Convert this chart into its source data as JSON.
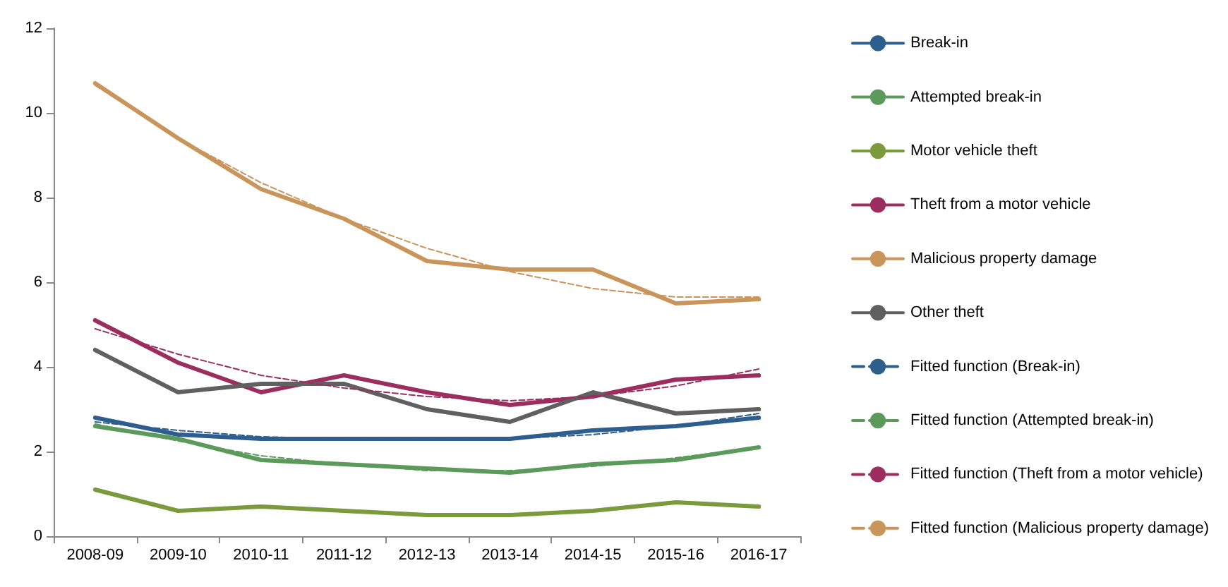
{
  "chart_data": {
    "type": "line",
    "categories": [
      "2008-09",
      "2009-10",
      "2010-11",
      "2011-12",
      "2012-13",
      "2013-14",
      "2014-15",
      "2015-16",
      "2016-17"
    ],
    "ylim": [
      0,
      12
    ],
    "yticks": [
      0,
      2,
      4,
      6,
      8,
      10,
      12
    ],
    "grid": false,
    "legend": "right",
    "marker": "none",
    "series": [
      {
        "name": "Break-in",
        "color": "#2e5e8e",
        "values": [
          2.8,
          2.4,
          2.3,
          2.3,
          2.3,
          2.3,
          2.5,
          2.6,
          2.8
        ]
      },
      {
        "name": "Attempted break-in",
        "color": "#5b9a5b",
        "values": [
          2.6,
          2.3,
          1.8,
          1.7,
          1.6,
          1.5,
          1.7,
          1.8,
          2.1
        ]
      },
      {
        "name": "Motor vehicle theft",
        "color": "#7a9a3c",
        "values": [
          1.1,
          0.6,
          0.7,
          0.6,
          0.5,
          0.5,
          0.6,
          0.8,
          0.7
        ]
      },
      {
        "name": "Theft from a motor vehicle",
        "color": "#9b2d5f",
        "values": [
          5.1,
          4.1,
          3.4,
          3.8,
          3.4,
          3.1,
          3.3,
          3.7,
          3.8
        ]
      },
      {
        "name": "Malicious property damage",
        "color": "#c9955a",
        "values": [
          10.7,
          9.4,
          8.2,
          7.5,
          6.5,
          6.3,
          6.3,
          5.5,
          5.6
        ]
      },
      {
        "name": "Other theft",
        "color": "#606060",
        "values": [
          4.4,
          3.4,
          3.6,
          3.6,
          3.0,
          2.7,
          3.4,
          2.9,
          3.0
        ]
      },
      {
        "name": "Fitted function (Break-in)",
        "color": "#2e5e8e",
        "line_style": "dashed",
        "values": [
          2.7,
          2.5,
          2.35,
          2.3,
          2.3,
          2.3,
          2.4,
          2.6,
          2.9
        ]
      },
      {
        "name": "Fitted function (Attempted break-in)",
        "color": "#5b9a5b",
        "line_style": "dashed",
        "values": [
          2.65,
          2.25,
          1.9,
          1.7,
          1.55,
          1.55,
          1.65,
          1.85,
          2.1
        ]
      },
      {
        "name": "Fitted function (Theft from a motor vehicle)",
        "color": "#9b2d5f",
        "line_style": "dashed",
        "values": [
          4.9,
          4.3,
          3.8,
          3.5,
          3.3,
          3.2,
          3.3,
          3.55,
          3.95
        ]
      },
      {
        "name": "Fitted function (Malicious property damage)",
        "color": "#c9955a",
        "line_style": "dashed",
        "values": [
          10.65,
          9.4,
          8.35,
          7.5,
          6.8,
          6.25,
          5.85,
          5.65,
          5.65
        ]
      }
    ]
  }
}
